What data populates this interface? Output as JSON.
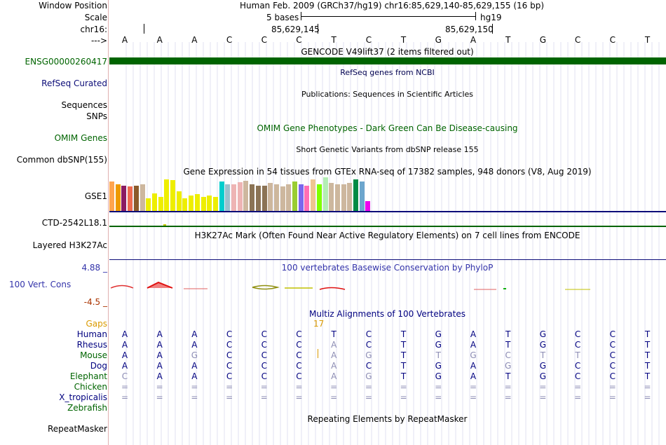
{
  "header": {
    "window_position_label": "Window Position",
    "window_position_value": "Human Feb. 2009 (GRCh37/hg19)   chr16:85,629,140-85,629,155 (16 bp)",
    "scale_label": "Scale",
    "scale_text": "5 bases",
    "scale_assembly": "hg19",
    "chr_label": "chr16:",
    "coord_1": "85,629,145",
    "coord_2": "85,629,150",
    "strand_label": "--->"
  },
  "sequence": [
    "A",
    "A",
    "A",
    "C",
    "C",
    "C",
    "T",
    "C",
    "T",
    "G",
    "A",
    "T",
    "G",
    "C",
    "C",
    "T"
  ],
  "tracks": {
    "gencode_title": "GENCODE V49lift37 (2 items filtered out)",
    "gencode_gene": "ENSG00000260417",
    "refseq_title": "RefSeq genes from NCBI",
    "refseq_label": "RefSeq Curated",
    "pubs_title": "Publications: Sequences in Scientific Articles",
    "sequences_label": "Sequences",
    "snps_label": "SNPs",
    "omim_title": "OMIM Gene Phenotypes - Dark Green Can Be Disease-causing",
    "omim_label": "OMIM Genes",
    "dbsnp_title": "Short Genetic Variants from dbSNP release 155",
    "dbsnp_label": "Common dbSNP(155)",
    "gtex_title": "Gene Expression in 54 tissues from GTEx RNA-seq of 17382 samples, 948 donors (V8, Aug 2019)",
    "gtex_label": "GSE1",
    "ctd_label": "CTD-2542L18.1",
    "h3k27_title": "H3K27Ac Mark (Often Found Near Active Regulatory Elements) on 7 cell lines from ENCODE",
    "h3k27_label": "Layered H3K27Ac",
    "cons_title": "100 vertebrates Basewise Conservation by PhyloP",
    "cons_label": "100 Vert. Cons",
    "cons_max": "4.88 _",
    "cons_min": "-4.5 _",
    "multiz_title": "Multiz Alignments of 100 Vertebrates",
    "gaps_label": "Gaps",
    "gaps_value": "17",
    "repeat_title": "Repeating Elements by RepeatMasker",
    "repeat_label": "RepeatMasker"
  },
  "gtex_bars": [
    {
      "h": 42,
      "c": "#FFA54F"
    },
    {
      "h": 38,
      "c": "#EE9A00"
    },
    {
      "h": 36,
      "c": "#8B1C62"
    },
    {
      "h": 35,
      "c": "#EE6A50"
    },
    {
      "h": 36,
      "c": "#8B5A2B"
    },
    {
      "h": 38,
      "c": "#CDB79E"
    },
    {
      "h": 18,
      "c": "#EEEE00"
    },
    {
      "h": 25,
      "c": "#EEEE00"
    },
    {
      "h": 20,
      "c": "#EEEE00"
    },
    {
      "h": 45,
      "c": "#EEEE00"
    },
    {
      "h": 44,
      "c": "#EEEE00"
    },
    {
      "h": 28,
      "c": "#EEEE00"
    },
    {
      "h": 18,
      "c": "#EEEE00"
    },
    {
      "h": 22,
      "c": "#EEEE00"
    },
    {
      "h": 24,
      "c": "#EEEE00"
    },
    {
      "h": 20,
      "c": "#EEEE00"
    },
    {
      "h": 22,
      "c": "#EEEE00"
    },
    {
      "h": 20,
      "c": "#EEEE00"
    },
    {
      "h": 42,
      "c": "#00CDCD"
    },
    {
      "h": 38,
      "c": "#9AC0CD"
    },
    {
      "h": 38,
      "c": "#EEB4B4"
    },
    {
      "h": 41,
      "c": "#EEB4B4"
    },
    {
      "h": 43,
      "c": "#CDB79E"
    },
    {
      "h": 38,
      "c": "#8B7355"
    },
    {
      "h": 36,
      "c": "#8B7355"
    },
    {
      "h": 36,
      "c": "#8B7355"
    },
    {
      "h": 40,
      "c": "#CDB79E"
    },
    {
      "h": 38,
      "c": "#CDB79E"
    },
    {
      "h": 35,
      "c": "#CDB79E"
    },
    {
      "h": 38,
      "c": "#CDB79E"
    },
    {
      "h": 42,
      "c": "#9ACD32"
    },
    {
      "h": 38,
      "c": "#7A67EE"
    },
    {
      "h": 36,
      "c": "#FF6EB4"
    },
    {
      "h": 45,
      "c": "#EEC591"
    },
    {
      "h": 38,
      "c": "#7FFF00"
    },
    {
      "h": 48,
      "c": "#B4EEB4"
    },
    {
      "h": 40,
      "c": "#CDB79E"
    },
    {
      "h": 38,
      "c": "#CDB79E"
    },
    {
      "h": 38,
      "c": "#CDB79E"
    },
    {
      "h": 40,
      "c": "#CDB79E"
    },
    {
      "h": 45,
      "c": "#008B45"
    },
    {
      "h": 42,
      "c": "#6CA6CD"
    },
    {
      "h": 14,
      "c": "#EE00EE"
    }
  ],
  "alignments": [
    {
      "species": "Human",
      "color": "#00007F",
      "bases": [
        "A",
        "A",
        "A",
        "C",
        "C",
        "C",
        "T",
        "C",
        "T",
        "G",
        "A",
        "T",
        "G",
        "C",
        "C",
        "T"
      ],
      "dim": []
    },
    {
      "species": "Rhesus",
      "color": "#00007F",
      "bases": [
        "A",
        "A",
        "A",
        "C",
        "C",
        "C",
        "A",
        "C",
        "T",
        "G",
        "A",
        "T",
        "G",
        "C",
        "C",
        "T"
      ],
      "dim": [
        6
      ]
    },
    {
      "species": "Mouse",
      "color": "#006400",
      "bases": [
        "A",
        "A",
        "G",
        "C",
        "C",
        "C",
        "A",
        "G",
        "T",
        "T",
        "G",
        "C",
        "T",
        "T",
        "C",
        "T"
      ],
      "dim": [
        2,
        6,
        7,
        9,
        10,
        11,
        12,
        13
      ]
    },
    {
      "species": "Dog",
      "color": "#00007F",
      "bases": [
        "A",
        "A",
        "A",
        "C",
        "C",
        "C",
        "A",
        "C",
        "T",
        "G",
        "A",
        "G",
        "G",
        "C",
        "C",
        "T"
      ],
      "dim": [
        6,
        11
      ]
    },
    {
      "species": "Elephant",
      "color": "#006400",
      "bases": [
        "C",
        "A",
        "A",
        "C",
        "C",
        "C",
        "A",
        "G",
        "T",
        "G",
        "A",
        "T",
        "G",
        "C",
        "C",
        "T"
      ],
      "dim": [
        0,
        6,
        7
      ]
    },
    {
      "species": "Chicken",
      "color": "#006400",
      "bases": [
        "=",
        "=",
        "=",
        "=",
        "=",
        "=",
        "=",
        "=",
        "=",
        "=",
        "=",
        "=",
        "=",
        "=",
        "=",
        "="
      ],
      "dim": [
        0,
        1,
        2,
        3,
        4,
        5,
        6,
        7,
        8,
        9,
        10,
        11,
        12,
        13,
        14,
        15
      ]
    },
    {
      "species": "X_tropicalis",
      "color": "#00007F",
      "bases": [
        "=",
        "=",
        "=",
        "=",
        "=",
        "=",
        "=",
        "=",
        "=",
        "=",
        "=",
        "=",
        "=",
        "=",
        "=",
        "="
      ],
      "dim": [
        0,
        1,
        2,
        3,
        4,
        5,
        6,
        7,
        8,
        9,
        10,
        11,
        12,
        13,
        14,
        15
      ]
    },
    {
      "species": "Zebrafish",
      "color": "#006400",
      "bases": [],
      "dim": []
    }
  ],
  "colors": {
    "gene_green": "#006400",
    "navy": "#00007F",
    "gap_orange": "#DA9A00",
    "cons_red": "#AA3300",
    "grid": "#C8C8E8"
  }
}
